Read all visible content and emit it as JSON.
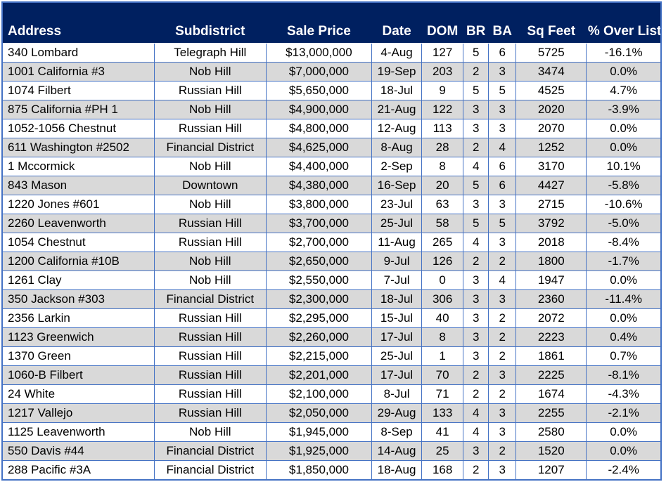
{
  "table": {
    "columns": [
      {
        "key": "address",
        "label": "Address",
        "align": "left"
      },
      {
        "key": "subdistrict",
        "label": "Subdistrict",
        "align": "center"
      },
      {
        "key": "price",
        "label": "Sale Price",
        "align": "center"
      },
      {
        "key": "date",
        "label": "Date",
        "align": "center"
      },
      {
        "key": "dom",
        "label": "DOM",
        "align": "center"
      },
      {
        "key": "br",
        "label": "BR",
        "align": "center"
      },
      {
        "key": "ba",
        "label": "BA",
        "align": "center"
      },
      {
        "key": "sqft",
        "label": "Sq Feet",
        "align": "center"
      },
      {
        "key": "overlist",
        "label": "% Over List",
        "align": "center"
      }
    ],
    "rows": [
      [
        "340 Lombard",
        "Telegraph Hill",
        "$13,000,000",
        "4-Aug",
        "127",
        "5",
        "6",
        "5725",
        "-16.1%"
      ],
      [
        "1001 California #3",
        "Nob Hill",
        "$7,000,000",
        "19-Sep",
        "203",
        "2",
        "3",
        "3474",
        "0.0%"
      ],
      [
        "1074 Filbert",
        "Russian Hill",
        "$5,650,000",
        "18-Jul",
        "9",
        "5",
        "5",
        "4525",
        "4.7%"
      ],
      [
        "875 California #PH 1",
        "Nob Hill",
        "$4,900,000",
        "21-Aug",
        "122",
        "3",
        "3",
        "2020",
        "-3.9%"
      ],
      [
        "1052-1056 Chestnut",
        "Russian Hill",
        "$4,800,000",
        "12-Aug",
        "113",
        "3",
        "3",
        "2070",
        "0.0%"
      ],
      [
        "611 Washington #2502",
        "Financial District",
        "$4,625,000",
        "8-Aug",
        "28",
        "2",
        "4",
        "1252",
        "0.0%"
      ],
      [
        "1 Mccormick",
        "Nob Hill",
        "$4,400,000",
        "2-Sep",
        "8",
        "4",
        "6",
        "3170",
        "10.1%"
      ],
      [
        "843 Mason",
        "Downtown",
        "$4,380,000",
        "16-Sep",
        "20",
        "5",
        "6",
        "4427",
        "-5.8%"
      ],
      [
        "1220 Jones #601",
        "Nob Hill",
        "$3,800,000",
        "23-Jul",
        "63",
        "3",
        "3",
        "2715",
        "-10.6%"
      ],
      [
        "2260 Leavenworth",
        "Russian Hill",
        "$3,700,000",
        "25-Jul",
        "58",
        "5",
        "5",
        "3792",
        "-5.0%"
      ],
      [
        "1054 Chestnut",
        "Russian Hill",
        "$2,700,000",
        "11-Aug",
        "265",
        "4",
        "3",
        "2018",
        "-8.4%"
      ],
      [
        "1200 California #10B",
        "Nob Hill",
        "$2,650,000",
        "9-Jul",
        "126",
        "2",
        "2",
        "1800",
        "-1.7%"
      ],
      [
        "1261 Clay",
        "Nob Hill",
        "$2,550,000",
        "7-Jul",
        "0",
        "3",
        "4",
        "1947",
        "0.0%"
      ],
      [
        "350 Jackson #303",
        "Financial District",
        "$2,300,000",
        "18-Jul",
        "306",
        "3",
        "3",
        "2360",
        "-11.4%"
      ],
      [
        "2356 Larkin",
        "Russian Hill",
        "$2,295,000",
        "15-Jul",
        "40",
        "3",
        "2",
        "2072",
        "0.0%"
      ],
      [
        "1123 Greenwich",
        "Russian Hill",
        "$2,260,000",
        "17-Jul",
        "8",
        "3",
        "2",
        "2223",
        "0.4%"
      ],
      [
        "1370 Green",
        "Russian Hill",
        "$2,215,000",
        "25-Jul",
        "1",
        "3",
        "2",
        "1861",
        "0.7%"
      ],
      [
        "1060-B Filbert",
        "Russian Hill",
        "$2,201,000",
        "17-Jul",
        "70",
        "2",
        "3",
        "2225",
        "-8.1%"
      ],
      [
        "24 White",
        "Russian Hill",
        "$2,100,000",
        "8-Jul",
        "71",
        "2",
        "2",
        "1674",
        "-4.3%"
      ],
      [
        "1217 Vallejo",
        "Russian Hill",
        "$2,050,000",
        "29-Aug",
        "133",
        "4",
        "3",
        "2255",
        "-2.1%"
      ],
      [
        "1125 Leavenworth",
        "Nob Hill",
        "$1,945,000",
        "8-Sep",
        "41",
        "4",
        "3",
        "2580",
        "0.0%"
      ],
      [
        "550 Davis #44",
        "Financial District",
        "$1,925,000",
        "14-Aug",
        "25",
        "3",
        "2",
        "1520",
        "0.0%"
      ],
      [
        "288 Pacific #3A",
        "Financial District",
        "$1,850,000",
        "18-Aug",
        "168",
        "2",
        "3",
        "1207",
        "-2.4%"
      ]
    ]
  },
  "colors": {
    "header_bg": "#002060",
    "header_text": "#FFFFFF",
    "grid_border": "#4472C4",
    "row_bg": "#FFFFFF",
    "row_alt_bg": "#D9D9D9"
  }
}
